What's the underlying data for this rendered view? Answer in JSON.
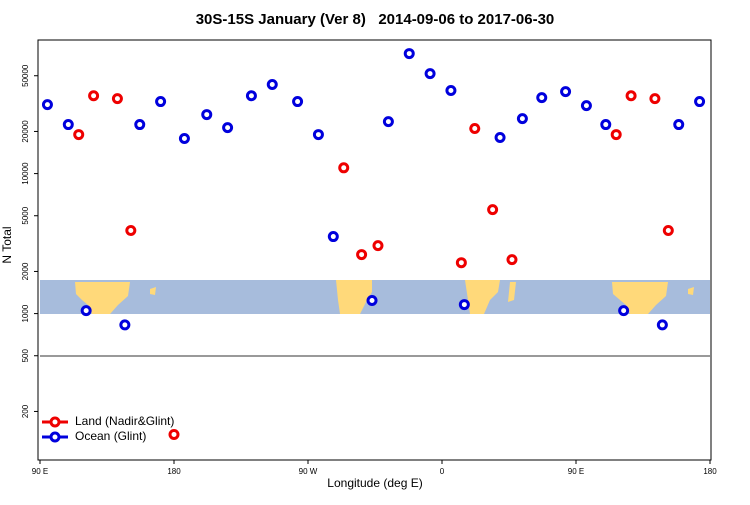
{
  "chart_data": {
    "type": "scatter",
    "title": "30S-15S January (Ver 8)   2014-09-06 to 2017-06-30",
    "x_label": "Longitude (deg E)",
    "y_label": "N Total",
    "xlim": [
      90,
      540
    ],
    "xticks": [
      {
        "value": 90,
        "label": "90 E"
      },
      180,
      {
        "value": 270,
        "label": "90 W"
      },
      {
        "value": 360,
        "label": "0"
      },
      {
        "value": 450,
        "label": "90 E"
      },
      {
        "value": 540,
        "label": "180"
      }
    ],
    "ylim": [
      90,
      90000
    ],
    "log_y": true,
    "yticks": [
      200,
      500,
      1000,
      2000,
      5000,
      10000,
      20000,
      50000
    ],
    "legend_position": "bottom-left",
    "series": [
      {
        "name": "Land (Nadir&Glint)",
        "color": "#ee0000",
        "x": [
          116,
          126,
          142,
          151,
          180,
          294,
          306,
          317,
          373,
          382,
          394,
          407,
          477,
          487,
          503,
          512
        ],
        "values": [
          19000,
          36000,
          34300,
          3920,
          137,
          11000,
          2640,
          3060,
          2310,
          21000,
          5530,
          2430,
          19000,
          36000,
          34300,
          3920
        ]
      },
      {
        "name": "Ocean (Glint)",
        "color": "#0000dd",
        "x": [
          95,
          109,
          121,
          147,
          157,
          171,
          187,
          202,
          216,
          232,
          246,
          263,
          277,
          287,
          313,
          324,
          338,
          352,
          366,
          375,
          399,
          414,
          427,
          443,
          457,
          470,
          482,
          508,
          519,
          533
        ],
        "values": [
          31100,
          22400,
          1050,
          830,
          22400,
          32700,
          17800,
          26400,
          21300,
          36000,
          43300,
          32700,
          19000,
          3550,
          1240,
          23500,
          72000,
          51800,
          39200,
          1160,
          18100,
          24700,
          34900,
          38500,
          30600,
          22400,
          1050,
          830,
          22400,
          32700
        ]
      }
    ]
  }
}
